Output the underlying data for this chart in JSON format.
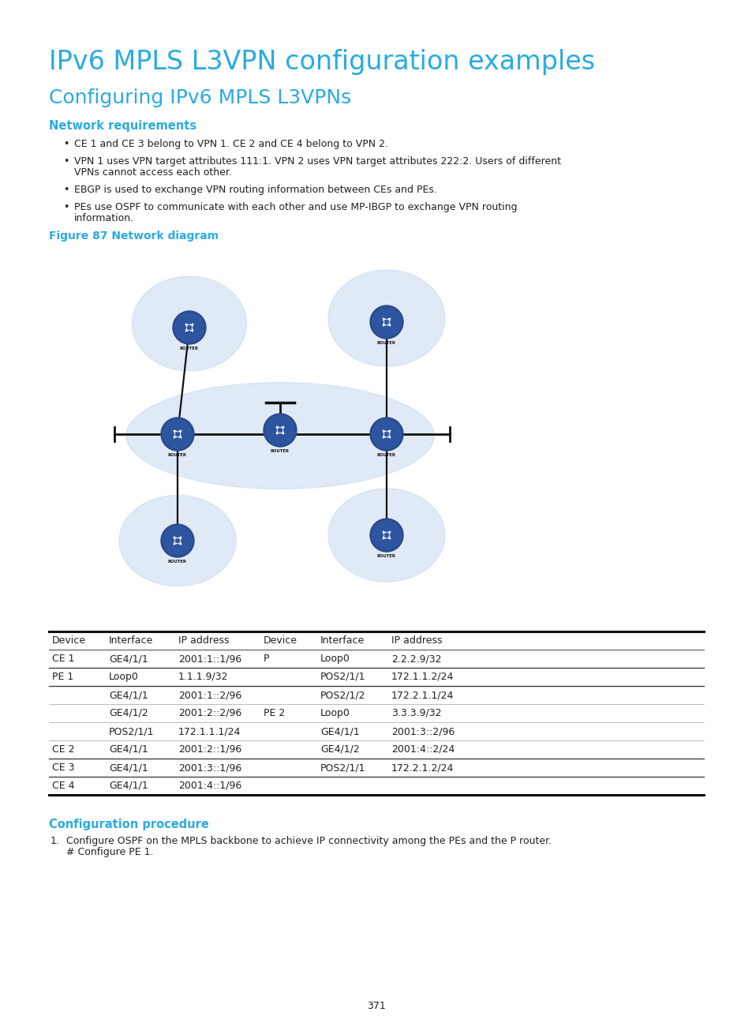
{
  "title1": "IPv6 MPLS L3VPN configuration examples",
  "title2": "Configuring IPv6 MPLS L3VPNs",
  "section1": "Network requirements",
  "bullets": [
    "CE 1 and CE 3 belong to VPN 1. CE 2 and CE 4 belong to VPN 2.",
    "VPN 1 uses VPN target attributes 111:1. VPN 2 uses VPN target attributes 222:2. Users of different\nVPNs cannot access each other.",
    "EBGP is used to exchange VPN routing information between CEs and PEs.",
    "PEs use OSPF to communicate with each other and use MP-IBGP to exchange VPN routing\ninformation."
  ],
  "figure_label": "Figure 87 Network diagram",
  "section2": "Configuration procedure",
  "page_number": "371",
  "title1_color": "#29ABE2",
  "title2_color": "#29ABE2",
  "section_color": "#29ABE2",
  "figure_label_color": "#29ABE2",
  "text_color": "#231F20",
  "bg_color": "#FFFFFF",
  "table_header": [
    "Device",
    "Interface",
    "IP address",
    "Device",
    "Interface",
    "IP address"
  ],
  "table_rows": [
    [
      "CE 1",
      "GE4/1/1",
      "2001:1::1/96",
      "P",
      "Loop0",
      "2.2.2.9/32"
    ],
    [
      "PE 1",
      "Loop0",
      "1.1.1.9/32",
      "",
      "POS2/1/1",
      "172.1.1.2/24"
    ],
    [
      "",
      "GE4/1/1",
      "2001:1::2/96",
      "",
      "POS2/1/2",
      "172.2.1.1/24"
    ],
    [
      "",
      "GE4/1/2",
      "2001:2::2/96",
      "PE 2",
      "Loop0",
      "3.3.3.9/32"
    ],
    [
      "",
      "POS2/1/1",
      "172.1.1.1/24",
      "",
      "GE4/1/1",
      "2001:3::2/96"
    ],
    [
      "CE 2",
      "GE4/1/1",
      "2001:2::1/96",
      "",
      "GE4/1/2",
      "2001:4::2/24"
    ],
    [
      "CE 3",
      "GE4/1/1",
      "2001:3::1/96",
      "",
      "POS2/1/1",
      "172.2.1.2/24"
    ],
    [
      "CE 4",
      "GE4/1/1",
      "2001:4::1/96",
      "",
      "",
      ""
    ]
  ],
  "ellipse_color": "#B8CCE4",
  "router_color": "#2E4A8C"
}
